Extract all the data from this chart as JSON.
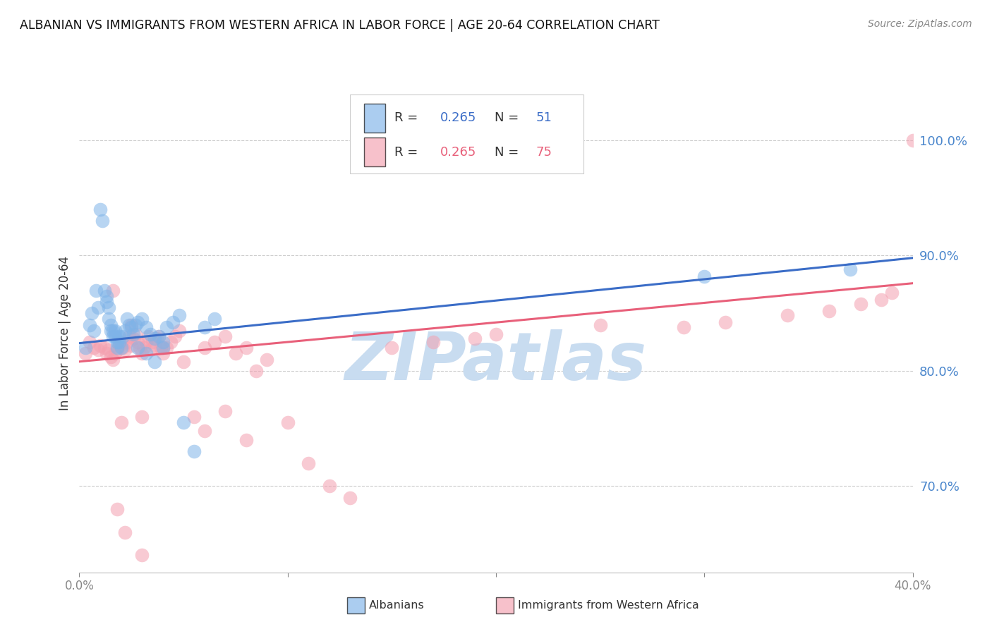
{
  "title": "ALBANIAN VS IMMIGRANTS FROM WESTERN AFRICA IN LABOR FORCE | AGE 20-64 CORRELATION CHART",
  "source": "Source: ZipAtlas.com",
  "ylabel": "In Labor Force | Age 20-64",
  "xlim": [
    0.0,
    0.4
  ],
  "ylim": [
    0.625,
    1.04
  ],
  "yticks": [
    0.7,
    0.8,
    0.9,
    1.0
  ],
  "ytick_labels": [
    "70.0%",
    "80.0%",
    "90.0%",
    "100.0%"
  ],
  "xticks": [
    0.0,
    0.1,
    0.2,
    0.3,
    0.4
  ],
  "xtick_labels": [
    "0.0%",
    "",
    "",
    "",
    "40.0%"
  ],
  "blue_R": "0.265",
  "blue_N": "51",
  "pink_R": "0.265",
  "pink_N": "75",
  "blue_color": "#7EB3E8",
  "pink_color": "#F4A0B0",
  "trend_blue": "#3B6DC7",
  "trend_pink": "#E8607A",
  "tick_color": "#4A86CC",
  "watermark_text": "ZIPatlas",
  "watermark_color": "#C8DCF0",
  "legend_label_blue": "Albanians",
  "legend_label_pink": "Immigrants from Western Africa",
  "blue_x": [
    0.003,
    0.005,
    0.006,
    0.007,
    0.008,
    0.009,
    0.01,
    0.011,
    0.012,
    0.013,
    0.013,
    0.014,
    0.014,
    0.015,
    0.015,
    0.016,
    0.016,
    0.017,
    0.017,
    0.018,
    0.018,
    0.019,
    0.019,
    0.02,
    0.021,
    0.022,
    0.023,
    0.024,
    0.025,
    0.026,
    0.027,
    0.028,
    0.03,
    0.032,
    0.034,
    0.036,
    0.038,
    0.04,
    0.042,
    0.045,
    0.048,
    0.05,
    0.055,
    0.06,
    0.065,
    0.028,
    0.032,
    0.036,
    0.04,
    0.3,
    0.37
  ],
  "blue_y": [
    0.82,
    0.84,
    0.85,
    0.835,
    0.87,
    0.855,
    0.94,
    0.93,
    0.87,
    0.865,
    0.86,
    0.855,
    0.845,
    0.84,
    0.835,
    0.835,
    0.83,
    0.835,
    0.83,
    0.825,
    0.82,
    0.83,
    0.825,
    0.82,
    0.83,
    0.835,
    0.845,
    0.84,
    0.838,
    0.832,
    0.84,
    0.842,
    0.845,
    0.838,
    0.832,
    0.828,
    0.83,
    0.825,
    0.838,
    0.842,
    0.848,
    0.755,
    0.73,
    0.838,
    0.845,
    0.82,
    0.815,
    0.808,
    0.82,
    0.882,
    0.888
  ],
  "pink_x": [
    0.003,
    0.005,
    0.007,
    0.009,
    0.01,
    0.012,
    0.013,
    0.014,
    0.015,
    0.016,
    0.017,
    0.018,
    0.019,
    0.02,
    0.021,
    0.022,
    0.023,
    0.024,
    0.025,
    0.026,
    0.027,
    0.028,
    0.029,
    0.03,
    0.031,
    0.032,
    0.033,
    0.034,
    0.035,
    0.036,
    0.037,
    0.038,
    0.039,
    0.04,
    0.042,
    0.044,
    0.046,
    0.048,
    0.05,
    0.055,
    0.06,
    0.065,
    0.07,
    0.075,
    0.08,
    0.085,
    0.09,
    0.1,
    0.11,
    0.12,
    0.13,
    0.15,
    0.17,
    0.19,
    0.016,
    0.02,
    0.025,
    0.03,
    0.04,
    0.06,
    0.07,
    0.08,
    0.2,
    0.25,
    0.29,
    0.31,
    0.34,
    0.36,
    0.375,
    0.385,
    0.018,
    0.022,
    0.03,
    0.39,
    0.4
  ],
  "pink_y": [
    0.815,
    0.825,
    0.82,
    0.818,
    0.822,
    0.82,
    0.815,
    0.818,
    0.812,
    0.81,
    0.815,
    0.818,
    0.822,
    0.825,
    0.82,
    0.818,
    0.825,
    0.83,
    0.822,
    0.828,
    0.832,
    0.825,
    0.82,
    0.815,
    0.82,
    0.825,
    0.83,
    0.818,
    0.825,
    0.822,
    0.828,
    0.83,
    0.82,
    0.815,
    0.82,
    0.825,
    0.83,
    0.835,
    0.808,
    0.76,
    0.82,
    0.825,
    0.83,
    0.815,
    0.74,
    0.8,
    0.81,
    0.755,
    0.72,
    0.7,
    0.69,
    0.82,
    0.825,
    0.828,
    0.87,
    0.755,
    0.84,
    0.76,
    0.82,
    0.748,
    0.765,
    0.82,
    0.832,
    0.84,
    0.838,
    0.842,
    0.848,
    0.852,
    0.858,
    0.862,
    0.68,
    0.66,
    0.64,
    0.868,
    1.0
  ],
  "blue_trend_x": [
    0.0,
    0.4
  ],
  "blue_trend_y": [
    0.824,
    0.898
  ],
  "pink_trend_x": [
    0.0,
    0.4
  ],
  "pink_trend_y": [
    0.808,
    0.876
  ]
}
